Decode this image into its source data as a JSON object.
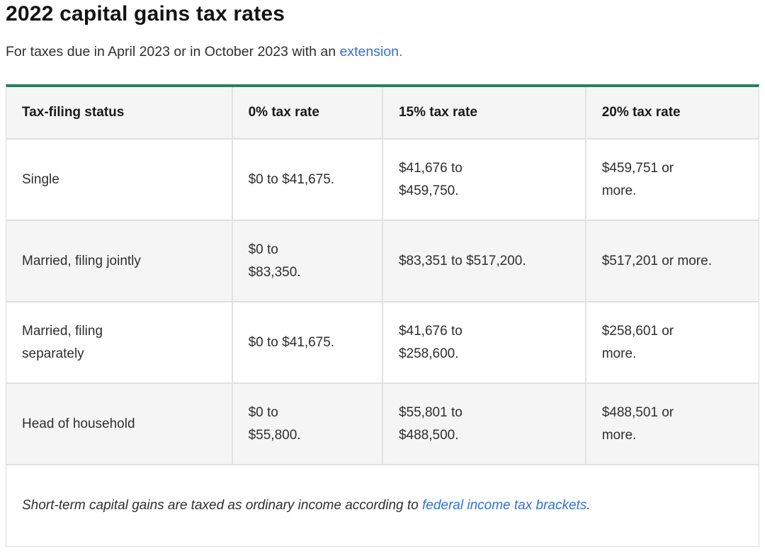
{
  "page": {
    "title": "2022 capital gains tax rates"
  },
  "subtitle": {
    "text_before_link": "For taxes due in April 2023 or in October 2023 with an ",
    "link_text": "extension."
  },
  "table": {
    "columns": [
      "Tax-filing status",
      "0% tax rate",
      "15% tax rate",
      "20% tax rate"
    ],
    "rows": [
      {
        "status": "Single",
        "rate_0": "$0 to $41,675.",
        "rate_15": "$41,676 to\n$459,750.",
        "rate_20": "$459,751 or\nmore."
      },
      {
        "status": "Married, filing jointly",
        "rate_0": "$0 to\n$83,350.",
        "rate_15": "$83,351 to $517,200.",
        "rate_20": "$517,201 or more."
      },
      {
        "status": "Married, filing\nseparately",
        "rate_0": "$0 to $41,675.",
        "rate_15": "$41,676 to\n$258,600.",
        "rate_20": "$258,601 or\nmore."
      },
      {
        "status": "Head of household",
        "rate_0": "$0 to\n$55,800.",
        "rate_15": "$55,801 to\n$488,500.",
        "rate_20": "$488,501 or\nmore."
      }
    ],
    "footnote": {
      "text_before_link": "Short-term capital gains are taxed as ordinary income according to ",
      "link_text": "federal income tax brackets",
      "text_after_link": "."
    }
  },
  "colors": {
    "accent_green": "#2d7d5e",
    "link_blue": "#2f71d9",
    "zebra_gray": "#f5f5f5",
    "border_gray": "#e0e0e0"
  }
}
